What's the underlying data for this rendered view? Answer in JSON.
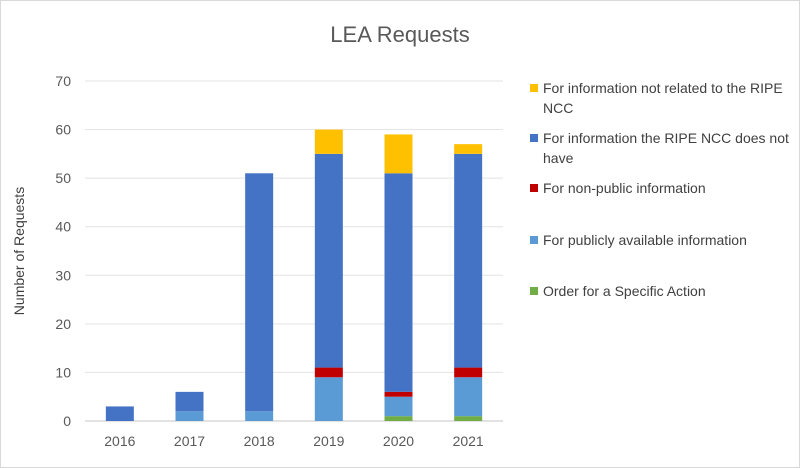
{
  "chart_data": {
    "type": "bar",
    "stacked": true,
    "title": "LEA Requests",
    "xlabel": "",
    "ylabel": "Number of Requests",
    "ylim": [
      0,
      70
    ],
    "yticks": [
      0,
      10,
      20,
      30,
      40,
      50,
      60,
      70
    ],
    "grid": true,
    "legend_placement": "right",
    "categories": [
      "2016",
      "2017",
      "2018",
      "2019",
      "2020",
      "2021"
    ],
    "series": [
      {
        "name": "Order for a Specific Action",
        "color": "#70ad47",
        "values": [
          0,
          0,
          0,
          0,
          1,
          1
        ]
      },
      {
        "name": "For publicly available information",
        "color": "#5b9bd5",
        "values": [
          0,
          2,
          2,
          9,
          4,
          8
        ]
      },
      {
        "name": "For non-public information",
        "color": "#c00000",
        "values": [
          0,
          0,
          0,
          2,
          1,
          2
        ]
      },
      {
        "name": "For information the RIPE NCC does not have",
        "color": "#4472c4",
        "values": [
          3,
          4,
          49,
          44,
          45,
          44
        ]
      },
      {
        "name": "For information not related to the RIPE NCC",
        "color": "#ffc000",
        "values": [
          0,
          0,
          0,
          5,
          8,
          2
        ]
      }
    ],
    "legend_order": [
      4,
      3,
      2,
      1,
      0
    ]
  }
}
